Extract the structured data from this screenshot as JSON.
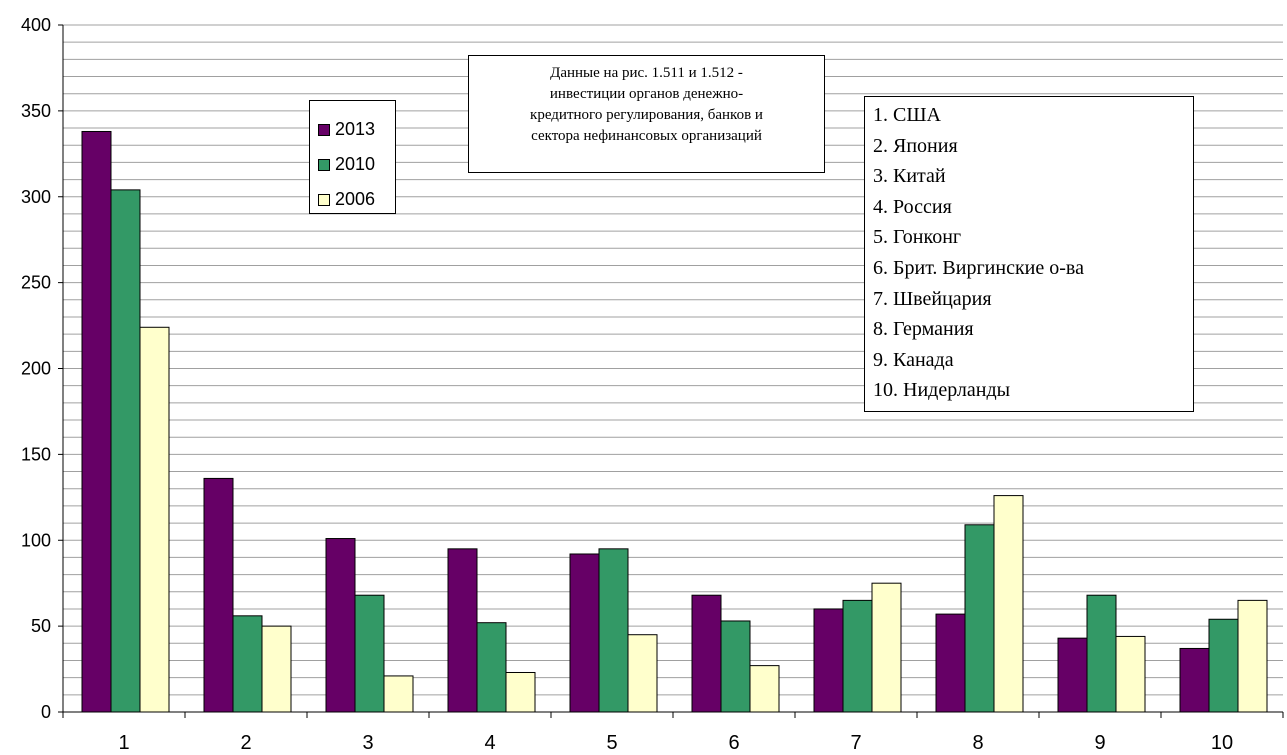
{
  "chart_data": {
    "type": "bar",
    "categories": [
      "1",
      "2",
      "3",
      "4",
      "5",
      "6",
      "7",
      "8",
      "9",
      "10"
    ],
    "series": [
      {
        "name": "2013",
        "values": [
          338,
          136,
          101,
          95,
          92,
          68,
          60,
          57,
          43,
          37
        ],
        "color": "#660066"
      },
      {
        "name": "2010",
        "values": [
          304,
          56,
          68,
          52,
          95,
          53,
          65,
          109,
          68,
          54
        ],
        "color": "#339966"
      },
      {
        "name": "2006",
        "values": [
          224,
          50,
          21,
          23,
          45,
          27,
          75,
          126,
          44,
          65
        ],
        "color": "#ffffcc"
      }
    ],
    "ylim": [
      0,
      400
    ],
    "yticks": [
      0,
      50,
      100,
      150,
      200,
      250,
      300,
      350,
      400
    ],
    "grid": true,
    "legend_placement": "top-left",
    "note": [
      "Данные на рис. 1.511 и 1.512 -",
      "инвестиции органов денежно-",
      "кредитного регулирования, банков и",
      "сектора нефинансовых организаций"
    ],
    "country_list": [
      "1. США",
      "2. Япония",
      "3. Китай",
      "4. Россия",
      "5. Гонконг",
      "6. Брит. Виргинские о-ва",
      "7. Швейцария",
      "8. Германия",
      "9. Канада",
      "10. Нидерланды"
    ]
  }
}
